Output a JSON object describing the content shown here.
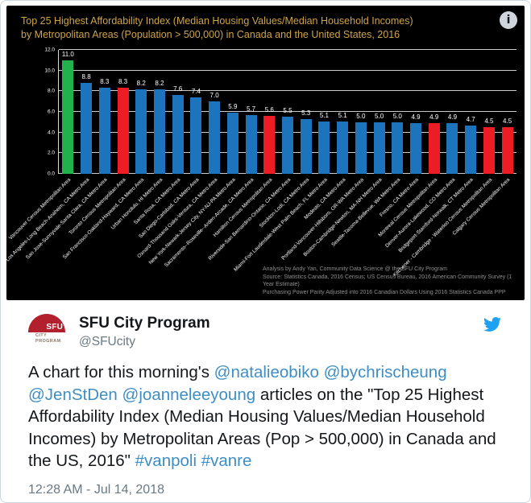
{
  "chart": {
    "title_line1": "Top 25 Highest Affordability Index (Median Housing Values/Median Household Incomes)",
    "title_line2": "by Metropolitan Areas (Population > 500,000) in Canada and the United States, 2016",
    "background": "#000000",
    "title_color": "#cfa348",
    "info_icon_glyph": "i",
    "notes": [
      "Analysis by Andy Yan, Community Data Science @ the SFU City Program",
      "Source: Statistics Canada, 2016 Census; US Census Bureau, 2016 American Community Survey (1 Year Estimate)",
      "Purchasing Power Parity Adjusted into 2016 Canadian Dollars Using 2016 Statistics Canada PPP"
    ]
  },
  "chart_data": {
    "type": "bar",
    "title": "Top 25 Highest Affordability Index (Median Housing Values/Median Household Incomes) by Metropolitan Areas (Population > 500,000) in Canada and the United States, 2016",
    "xlabel": "",
    "ylabel": "",
    "ylim": [
      0,
      12
    ],
    "grid": true,
    "legend": "none",
    "yticks": [
      {
        "value": 0,
        "label": "0.0"
      },
      {
        "value": 2,
        "label": "2.0"
      },
      {
        "value": 4,
        "label": "4.0"
      },
      {
        "value": 6,
        "label": "6.0"
      },
      {
        "value": 8,
        "label": "8.0"
      },
      {
        "value": 10,
        "label": "10.0"
      },
      {
        "value": 12,
        "label": "12.0"
      }
    ],
    "palette": {
      "blue": "#1c75bc",
      "red": "#ee1c25",
      "green": "#22b14c"
    },
    "bars": [
      {
        "category": "Vancouver Census Metropolitan Area",
        "value": 11.0,
        "label": "11.0",
        "color": "green"
      },
      {
        "category": "Los Angeles-Long Beach-Anaheim, CA Metro Area",
        "value": 8.8,
        "label": "8.8",
        "color": "blue"
      },
      {
        "category": "San Jose-Sunnyvale-Santa Clara, CA Metro Area",
        "value": 8.3,
        "label": "8.3",
        "color": "blue"
      },
      {
        "category": "Toronto Census Metropolitan Area",
        "value": 8.3,
        "label": "8.3",
        "color": "red"
      },
      {
        "category": "San Francisco-Oakland-Hayward, CA Metro Area",
        "value": 8.2,
        "label": "8.2",
        "color": "blue"
      },
      {
        "category": "Urban Honolulu, HI Metro Area",
        "value": 8.2,
        "label": "8.2",
        "color": "blue"
      },
      {
        "category": "Santa Rosa, CA Metro Area",
        "value": 7.6,
        "label": "7.6",
        "color": "blue"
      },
      {
        "category": "San Diego-Carlsbad, CA Metro Area",
        "value": 7.4,
        "label": "7.4",
        "color": "blue"
      },
      {
        "category": "Oxnard-Thousand Oaks-Ventura, CA Metro Area",
        "value": 7.0,
        "label": "7.0",
        "color": "blue"
      },
      {
        "category": "New York-Newark-Jersey City, NY-NJ-PA Metro Area",
        "value": 5.9,
        "label": "5.9",
        "color": "blue"
      },
      {
        "category": "Sacramento--Roseville--Arden-Arcade, CA Metro Area",
        "value": 5.7,
        "label": "5.7",
        "color": "blue"
      },
      {
        "category": "Hamilton Census Metropolitan Area",
        "value": 5.6,
        "label": "5.6",
        "color": "red"
      },
      {
        "category": "Riverside-San Bernardino-Ontario, CA Metro Area",
        "value": 5.5,
        "label": "5.5",
        "color": "blue"
      },
      {
        "category": "Stockton-Lodi, CA Metro Area",
        "value": 5.3,
        "label": "5.3",
        "color": "blue"
      },
      {
        "category": "Miami-Fort Lauderdale-West Palm Beach, FL Metro Area",
        "value": 5.1,
        "label": "5.1",
        "color": "blue"
      },
      {
        "category": "Modesto, CA Metro Area",
        "value": 5.1,
        "label": "5.1",
        "color": "blue"
      },
      {
        "category": "Portland-Vancouver-Hillsboro, OR-WA Metro Area",
        "value": 5.0,
        "label": "5.0",
        "color": "blue"
      },
      {
        "category": "Boston-Cambridge-Newton, MA-NH Metro Area",
        "value": 5.0,
        "label": "5.0",
        "color": "blue"
      },
      {
        "category": "Seattle-Tacoma-Bellevue, WA Metro Area",
        "value": 5.0,
        "label": "5.0",
        "color": "blue"
      },
      {
        "category": "Fresno, CA Metro Area",
        "value": 4.9,
        "label": "4.9",
        "color": "blue"
      },
      {
        "category": "Montreal Census Metropolitan Area",
        "value": 4.9,
        "label": "4.9",
        "color": "red"
      },
      {
        "category": "Denver-Aurora-Lakewood, CO Metro Area",
        "value": 4.9,
        "label": "4.9",
        "color": "blue"
      },
      {
        "category": "Bridgeport-Stamford-Norwalk, CT Metro Area",
        "value": 4.7,
        "label": "4.7",
        "color": "blue"
      },
      {
        "category": "Kitchener - Cambridge - Waterloo Census Metropolitan Area",
        "value": 4.5,
        "label": "4.5",
        "color": "red"
      },
      {
        "category": "Calgary Census Metropolitan Area",
        "value": 4.5,
        "label": "4.5",
        "color": "red"
      }
    ]
  },
  "tweet": {
    "name": "SFU City Program",
    "handle": "@SFUcity",
    "avatar": {
      "logo_text": "SFU",
      "caption_line1": "CITY",
      "caption_line2": "PROGRAM"
    },
    "brand_color": "#1da1f2",
    "link_color": "#3e8ec4",
    "body_segments": [
      {
        "text": "A chart for this morning's ",
        "link": false
      },
      {
        "text": "@natalieobiko",
        "link": true
      },
      {
        "text": " ",
        "link": false
      },
      {
        "text": "@bychrischeung",
        "link": true
      },
      {
        "text": " ",
        "link": false
      },
      {
        "text": "@JenStDen",
        "link": true
      },
      {
        "text": " ",
        "link": false
      },
      {
        "text": "@joanneleeyoung",
        "link": true
      },
      {
        "text": " articles on the \"Top 25 Highest Affordability Index (Median Housing Values/Median Household Incomes) by Metropolitan Areas (Pop > 500,000) in Canada and the US, 2016\" ",
        "link": false
      },
      {
        "text": "#vanpoli",
        "link": true
      },
      {
        "text": " ",
        "link": false
      },
      {
        "text": "#vanre",
        "link": true
      }
    ],
    "timestamp": "12:28 AM - Jul 14, 2018"
  }
}
